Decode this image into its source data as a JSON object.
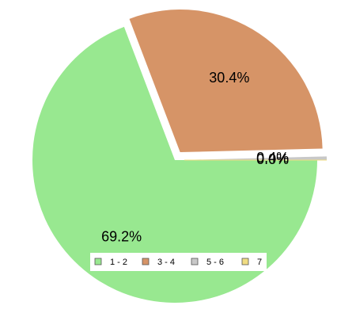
{
  "chart_data": {
    "type": "pie",
    "title": "",
    "exploded": true,
    "slices": [
      {
        "label": "1 - 2",
        "value": 69.2,
        "display": "69.2%",
        "color": "#98e890"
      },
      {
        "label": "3 - 4",
        "value": 30.4,
        "display": "30.4%",
        "color": "#d69467"
      },
      {
        "label": "5 - 6",
        "value": 0.4,
        "display": "0.4%",
        "color": "#c8c8c8"
      },
      {
        "label": "7",
        "value": 0.0,
        "display": "0.0%",
        "color": "#f0dc82"
      }
    ],
    "legend": {
      "placement": "bottom-center",
      "items": [
        "1 - 2",
        "3 - 4",
        "5 - 6",
        "7"
      ]
    }
  }
}
